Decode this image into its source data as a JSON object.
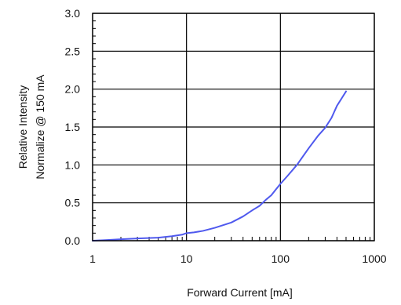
{
  "chart_data": {
    "type": "line",
    "title": "",
    "xlabel": "Forward Current [mA]",
    "ylabel_lines": [
      "Relative Intensity",
      "Normalize @ 150 mA"
    ],
    "x_scale": "log",
    "xlim": [
      1,
      1000
    ],
    "ylim": [
      0,
      3.0
    ],
    "x_ticks": [
      1,
      10,
      100,
      1000
    ],
    "x_tick_labels": [
      "1",
      "10",
      "100",
      "1000"
    ],
    "y_ticks": [
      0,
      0.5,
      1.0,
      1.5,
      2.0,
      2.5,
      3.0
    ],
    "y_tick_labels": [
      "0.0",
      "0.5",
      "1.0",
      "1.5",
      "2.0",
      "2.5",
      "3.0"
    ],
    "grid": true,
    "series": [
      {
        "color": "#4f59ee",
        "x": [
          1,
          1.5,
          2,
          3,
          5,
          7,
          9,
          10,
          12,
          15,
          20,
          30,
          40,
          50,
          60,
          70,
          80,
          90,
          100,
          120,
          150,
          200,
          250,
          300,
          350,
          400,
          450,
          500
        ],
        "y": [
          0,
          0.01,
          0.02,
          0.03,
          0.04,
          0.06,
          0.08,
          0.1,
          0.11,
          0.13,
          0.17,
          0.24,
          0.32,
          0.4,
          0.46,
          0.54,
          0.6,
          0.68,
          0.75,
          0.86,
          1.0,
          1.22,
          1.38,
          1.49,
          1.62,
          1.78,
          1.88,
          1.97
        ]
      }
    ]
  }
}
